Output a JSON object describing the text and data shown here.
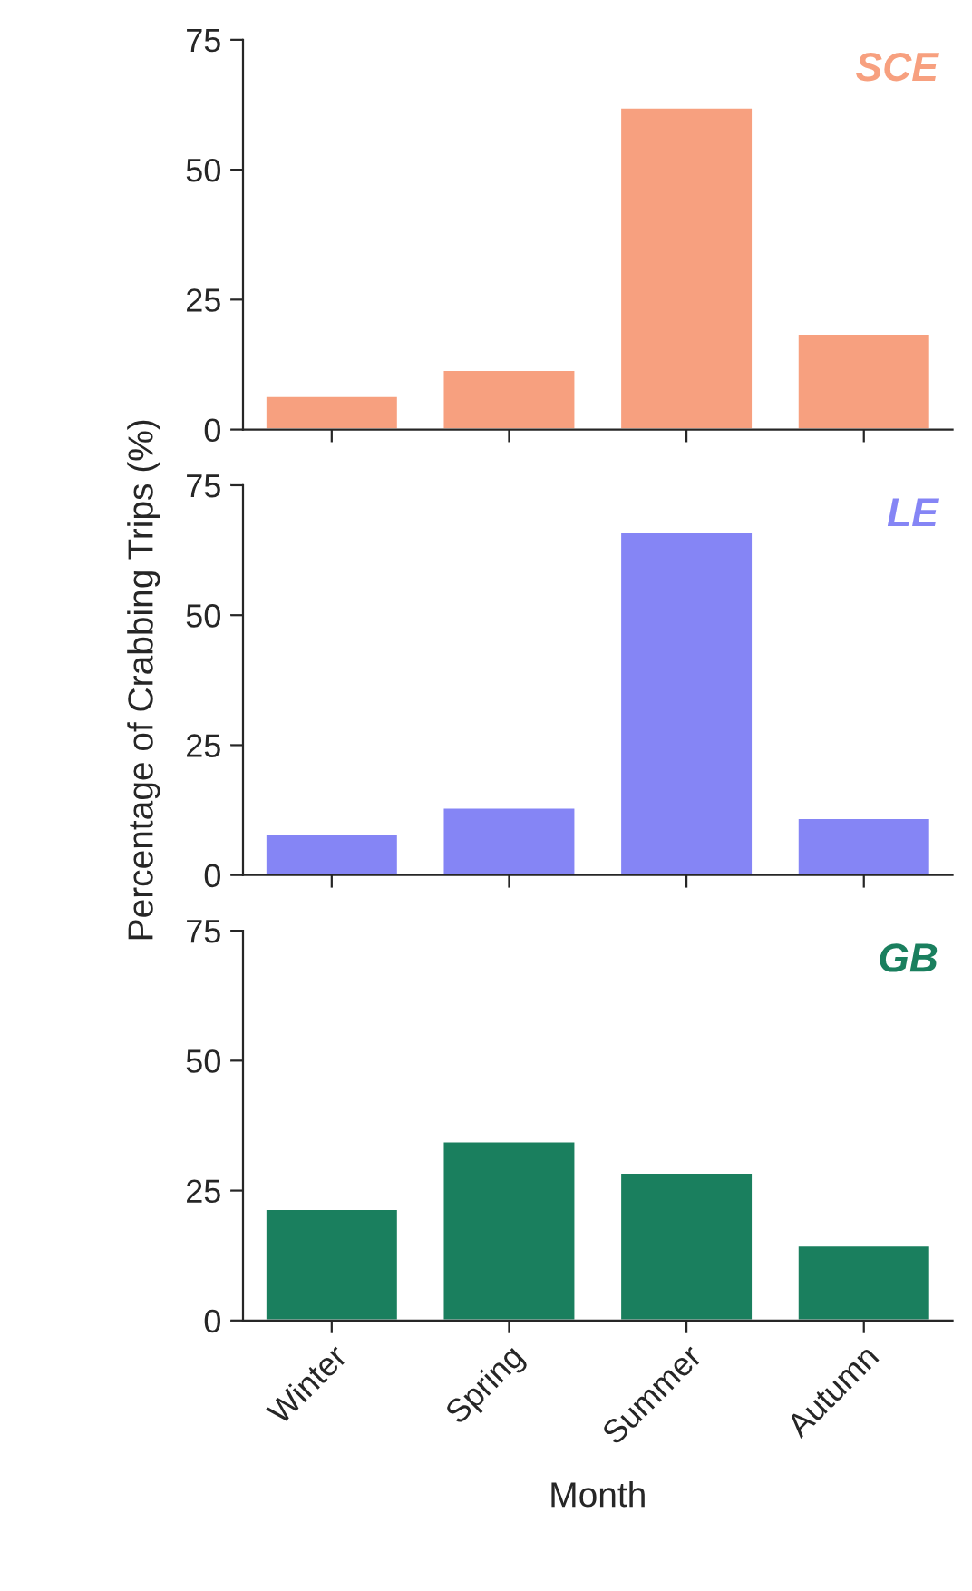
{
  "chart_data": [
    {
      "type": "bar",
      "title": "SCE",
      "values": [
        6.5,
        11.5,
        62,
        18.5
      ],
      "color": "#f7a07f",
      "ylim": [
        0,
        75
      ],
      "yticks": [
        0,
        25,
        50,
        75
      ],
      "tick_labels": "y"
    },
    {
      "type": "bar",
      "title": "LE",
      "ylabel": "Percentage of Crabbing Trips (%)",
      "values": [
        8,
        13,
        66,
        11
      ],
      "color": "#8585f5",
      "ylim": [
        0,
        75
      ],
      "yticks": [
        0,
        25,
        50,
        75
      ],
      "tick_labels": "y"
    },
    {
      "type": "bar",
      "title": "GB",
      "xlabel": "Month",
      "categories": [
        "Winter",
        "Spring",
        "Summer",
        "Autumn"
      ],
      "values": [
        21.5,
        34.5,
        28.5,
        14.5
      ],
      "color": "#1a7f5e",
      "ylim": [
        0,
        75
      ],
      "yticks": [
        0,
        25,
        50,
        75
      ]
    }
  ]
}
